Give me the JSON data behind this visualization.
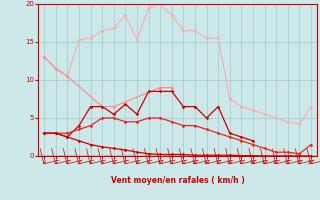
{
  "x": [
    0,
    1,
    2,
    3,
    4,
    5,
    6,
    7,
    8,
    9,
    10,
    11,
    12,
    13,
    14,
    15,
    16,
    17,
    18,
    19,
    20,
    21,
    22,
    23
  ],
  "line_pink_hi": [
    13.0,
    11.5,
    10.5,
    15.3,
    15.5,
    16.5,
    16.8,
    18.5,
    15.3,
    19.5,
    20.0,
    18.5,
    16.5,
    16.5,
    15.5,
    15.5,
    7.5,
    null,
    null,
    null,
    null,
    null,
    null,
    null
  ],
  "line_pink_lo": [
    null,
    null,
    null,
    null,
    null,
    null,
    null,
    null,
    null,
    null,
    null,
    null,
    null,
    null,
    null,
    null,
    7.5,
    6.5,
    6.0,
    5.5,
    5.0,
    4.5,
    4.2,
    6.5
  ],
  "line_pink_mid": [
    null,
    null,
    10.5,
    10.0,
    null,
    null,
    null,
    null,
    null,
    null,
    null,
    null,
    null,
    null,
    null,
    null,
    null,
    null,
    null,
    null,
    null,
    null,
    null,
    null
  ],
  "line_med_pink": [
    13.0,
    11.5,
    10.5,
    null,
    null,
    6.5,
    6.5,
    null,
    null,
    null,
    9.0,
    9.0,
    null,
    null,
    null,
    null,
    null,
    null,
    null,
    null,
    null,
    null,
    null,
    null
  ],
  "line_red_hi": [
    3.0,
    3.0,
    2.5,
    4.0,
    6.5,
    6.5,
    5.5,
    6.8,
    5.5,
    8.5,
    8.5,
    8.5,
    6.5,
    6.5,
    5.0,
    6.5,
    3.0,
    2.5,
    2.0,
    null,
    null,
    null,
    null,
    null
  ],
  "line_red_mid": [
    3.0,
    3.0,
    3.0,
    3.5,
    4.0,
    5.0,
    5.0,
    4.5,
    4.5,
    5.0,
    5.0,
    4.5,
    4.0,
    4.0,
    3.5,
    3.0,
    2.5,
    2.0,
    1.5,
    1.0,
    0.5,
    0.5,
    0.3,
    1.5
  ],
  "line_red_lo": [
    3.0,
    3.0,
    2.5,
    2.0,
    1.5,
    1.2,
    1.0,
    0.8,
    0.5,
    0.3,
    0.2,
    0.2,
    0.2,
    0.1,
    0.1,
    0.1,
    0.1,
    0.05,
    0.05,
    0.0,
    0.0,
    0.0,
    0.0,
    0.0
  ],
  "color_light_pink": "#ffaaaa",
  "color_med_pink": "#ff8888",
  "color_dark_red": "#cc0000",
  "color_red": "#ee2222",
  "bg_color": "#cce8e8",
  "grid_color": "#99cccc",
  "axis_color": "#cc0000",
  "xlabel": "Vent moyen/en rafales ( km/h )",
  "xlim": [
    -0.5,
    23.5
  ],
  "ylim": [
    0,
    20
  ],
  "yticks": [
    0,
    5,
    10,
    15,
    20
  ],
  "xticks": [
    0,
    1,
    2,
    3,
    4,
    5,
    6,
    7,
    8,
    9,
    10,
    11,
    12,
    13,
    14,
    15,
    16,
    17,
    18,
    19,
    20,
    21,
    22,
    23
  ]
}
